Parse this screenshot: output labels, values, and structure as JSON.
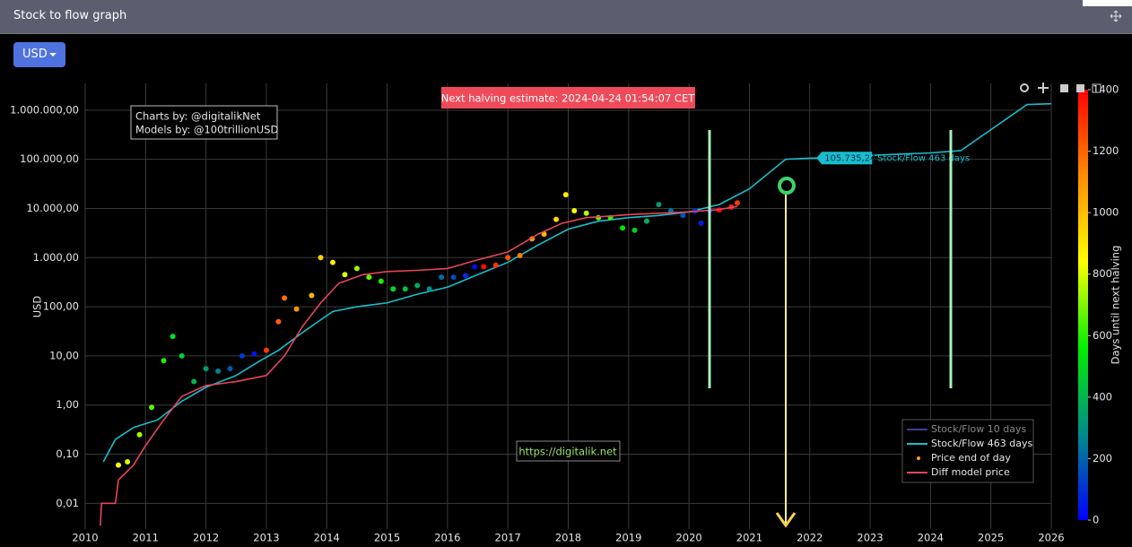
{
  "header": {
    "title": "Stock to flow graph",
    "currency_button": "USD"
  },
  "chart_data": {
    "type": "scatter",
    "y_label": "USD",
    "log_y": true,
    "grid": true,
    "legend_position": "bottom-right",
    "xlim": [
      2010,
      2026
    ],
    "ylim": [
      0.003,
      3500000
    ],
    "xticks": [
      2010,
      2011,
      2012,
      2013,
      2014,
      2015,
      2016,
      2017,
      2018,
      2019,
      2020,
      2021,
      2022,
      2023,
      2024,
      2025,
      2026
    ],
    "yticks": [
      {
        "value": 0.01,
        "label": "0,01"
      },
      {
        "value": 0.1,
        "label": "0,10"
      },
      {
        "value": 1,
        "label": "1,00"
      },
      {
        "value": 10,
        "label": "10,00"
      },
      {
        "value": 100,
        "label": "100,00"
      },
      {
        "value": 1000,
        "label": "1.000,00"
      },
      {
        "value": 10000,
        "label": "10.000,00"
      },
      {
        "value": 100000,
        "label": "100.000,00"
      },
      {
        "value": 1000000,
        "label": "1.000.000,00"
      }
    ],
    "annotations": {
      "halving_estimate": "Next halving estimate: 2024-04-24 01:54:07 CET",
      "credits": [
        "Charts by: @digitalikNet",
        "Models by: @100trillionUSD"
      ],
      "url": "https://digitalik.net"
    },
    "hover": {
      "x": 2022.2,
      "value": {
        "value": 105735.24,
        "label": "105.735,24"
      }
    },
    "colorbar": {
      "title": "Days until next halving",
      "lim": [
        0,
        1400
      ],
      "ticks": [
        0,
        200,
        400,
        600,
        800,
        1000,
        1200,
        1400
      ],
      "colorscale": [
        "#0000ff",
        "#008b8b",
        "#00ee00",
        "#ffff00",
        "#ff8c00",
        "#ff0000"
      ]
    },
    "series": [
      {
        "name": "Stock/Flow 10 days",
        "color": "#3d3d9e",
        "visible": false
      },
      {
        "name": "Stock/Flow 463 days",
        "color": "#17becf",
        "mode": "line",
        "x": [
          2010.3,
          2010.5,
          2010.8,
          2011.2,
          2011.6,
          2012.0,
          2012.5,
          2012.9,
          2013.2,
          2013.6,
          2014.1,
          2014.5,
          2015.0,
          2015.5,
          2016.0,
          2016.5,
          2017.0,
          2017.5,
          2018.0,
          2018.5,
          2019.0,
          2019.5,
          2020.0,
          2020.5,
          2021.0,
          2021.6,
          2022.0,
          2022.5,
          2023.0,
          2024.0,
          2024.5,
          2025.0,
          2025.6,
          2026.0
        ],
        "values": [
          0.07,
          0.2,
          0.35,
          0.5,
          1.2,
          2.3,
          4,
          8,
          13,
          30,
          80,
          100,
          120,
          180,
          250,
          450,
          800,
          1800,
          3800,
          5500,
          6500,
          7200,
          8500,
          12000,
          25000,
          100000,
          105000,
          110000,
          120000,
          135000,
          150000,
          400000,
          1300000,
          1350000
        ]
      },
      {
        "name": "Price end of day",
        "color": "#ff9f1c",
        "mode": "markers",
        "x": [
          2010.55,
          2010.7,
          2010.9,
          2011.1,
          2011.3,
          2011.45,
          2011.6,
          2011.8,
          2012.0,
          2012.2,
          2012.4,
          2012.6,
          2012.8,
          2013.0,
          2013.2,
          2013.3,
          2013.5,
          2013.75,
          2013.9,
          2014.1,
          2014.3,
          2014.5,
          2014.7,
          2014.9,
          2015.1,
          2015.3,
          2015.5,
          2015.7,
          2015.9,
          2016.1,
          2016.3,
          2016.45,
          2016.6,
          2016.8,
          2017.0,
          2017.2,
          2017.4,
          2017.6,
          2017.8,
          2017.96,
          2018.1,
          2018.3,
          2018.5,
          2018.7,
          2018.9,
          2019.1,
          2019.3,
          2019.5,
          2019.7,
          2019.9,
          2020.1,
          2020.2,
          2020.35,
          2020.5,
          2020.7,
          2020.8
        ],
        "values": [
          0.06,
          0.07,
          0.25,
          0.9,
          8,
          25,
          10,
          3,
          5.5,
          4.9,
          5.5,
          10,
          11,
          13,
          50,
          150,
          90,
          170,
          1000,
          800,
          450,
          600,
          400,
          330,
          230,
          230,
          270,
          230,
          400,
          400,
          430,
          650,
          650,
          700,
          1000,
          1100,
          2400,
          3000,
          6000,
          19000,
          9000,
          8000,
          6500,
          6500,
          4000,
          3600,
          5500,
          12000,
          9000,
          7200,
          9000,
          5000,
          8800,
          9300,
          10700,
          13000
        ],
        "color_values": [
          860,
          805,
          735,
          660,
          590,
          530,
          480,
          405,
          330,
          260,
          185,
          115,
          40,
          1285,
          1210,
          1175,
          1100,
          1010,
          955,
          880,
          810,
          735,
          665,
          590,
          520,
          445,
          375,
          300,
          225,
          155,
          80,
          25,
          1375,
          1300,
          1230,
          1155,
          1080,
          1010,
          935,
          880,
          825,
          755,
          680,
          605,
          535,
          460,
          390,
          315,
          240,
          170,
          95,
          60,
          4,
          1390,
          1320,
          1285
        ]
      },
      {
        "name": "Diff model price",
        "color": "#e8445a",
        "mode": "line",
        "x": [
          2010.25,
          2010.27,
          2010.5,
          2010.55,
          2010.8,
          2011.0,
          2011.3,
          2011.6,
          2012.0,
          2012.5,
          2013.0,
          2013.3,
          2013.6,
          2013.9,
          2014.2,
          2014.6,
          2015.0,
          2015.5,
          2016.0,
          2016.5,
          2017.0,
          2017.5,
          2017.9,
          2018.3,
          2018.7,
          2019.0,
          2019.5,
          2020.0,
          2020.5,
          2020.8
        ],
        "values": [
          0.0035,
          0.01,
          0.01,
          0.03,
          0.06,
          0.15,
          0.5,
          1.5,
          2.5,
          3,
          4,
          10,
          40,
          120,
          300,
          450,
          520,
          550,
          600,
          900,
          1300,
          3000,
          5000,
          6500,
          7000,
          7500,
          8000,
          8500,
          9500,
          11000
        ]
      }
    ]
  }
}
